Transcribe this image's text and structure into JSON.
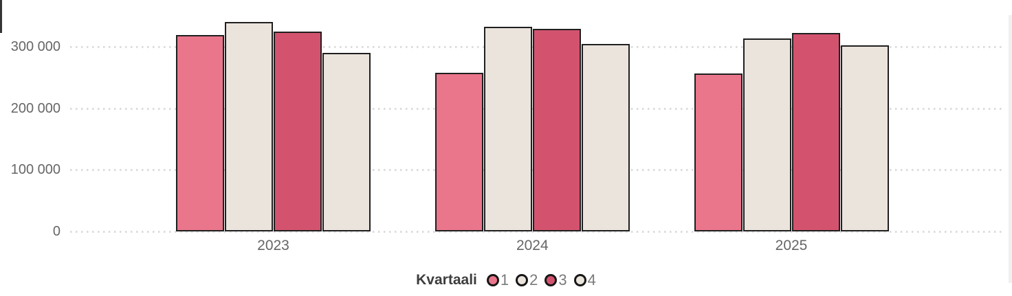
{
  "chart_data": {
    "type": "bar",
    "title": "",
    "xlabel": "",
    "ylabel": "",
    "categories": [
      "2023",
      "2024",
      "2025"
    ],
    "series": [
      {
        "name": "1",
        "color": "#ea768b",
        "values": [
          319000,
          258000,
          256000
        ]
      },
      {
        "name": "2",
        "color": "#eae4dd",
        "values": [
          340000,
          332000,
          313000
        ]
      },
      {
        "name": "3",
        "color": "#d3536f",
        "values": [
          325000,
          329000,
          322000
        ]
      },
      {
        "name": "4",
        "color": "#eae4dd",
        "values": [
          290000,
          305000,
          302000
        ]
      }
    ],
    "legend_title": "Kvartaali",
    "legend_position": "bottom",
    "legend_labels": [
      "1",
      "2",
      "3",
      "4"
    ],
    "y_ticks": [
      {
        "value": 0,
        "label": "0"
      },
      {
        "value": 100000,
        "label": "100 000"
      },
      {
        "value": 200000,
        "label": "200 000"
      },
      {
        "value": 300000,
        "label": "300 000"
      }
    ],
    "ylim": [
      0,
      375000
    ],
    "grid": "horizontal-dotted",
    "gridline_color": "#dcdcdc",
    "axis_label_color": "#666666",
    "bar_border_color": "#1f1f1f"
  }
}
